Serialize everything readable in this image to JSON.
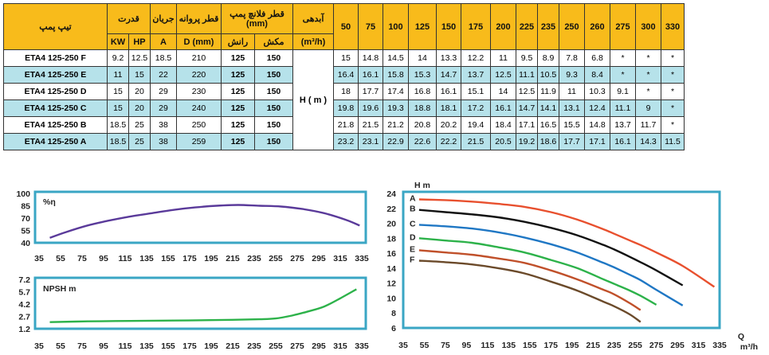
{
  "table": {
    "header": {
      "model": "تیپ پمپ",
      "power": "قدرت",
      "current": "جریان",
      "impeller": "قطر پروانه",
      "flange": "قطر فلانچ پمپ (mm)",
      "flow": "آبدهی",
      "kw": "KW",
      "hp": "HP",
      "a": "A",
      "dmm": "D (mm)",
      "discharge": "رانش",
      "suction": "مکش",
      "flow_unit": "(m³/h)",
      "h_label": "H ( m )"
    },
    "flows": [
      "50",
      "75",
      "100",
      "125",
      "150",
      "175",
      "200",
      "225",
      "235",
      "250",
      "260",
      "275",
      "300",
      "330"
    ],
    "rows": [
      {
        "model": "ETA4 125-250 F",
        "kw": "9.2",
        "hp": "12.5",
        "a": "18.5",
        "d": "210",
        "ran": "125",
        "mak": "150",
        "h": [
          "15",
          "14.8",
          "14.5",
          "14",
          "13.3",
          "12.2",
          "11",
          "9.5",
          "8.9",
          "7.8",
          "6.8",
          "*",
          "*",
          "*"
        ]
      },
      {
        "model": "ETA4 125-250 E",
        "kw": "11",
        "hp": "15",
        "a": "22",
        "d": "220",
        "ran": "125",
        "mak": "150",
        "h": [
          "16.4",
          "16.1",
          "15.8",
          "15.3",
          "14.7",
          "13.7",
          "12.5",
          "11.1",
          "10.5",
          "9.3",
          "8.4",
          "*",
          "*",
          "*"
        ]
      },
      {
        "model": "ETA4 125-250 D",
        "kw": "15",
        "hp": "20",
        "a": "29",
        "d": "230",
        "ran": "125",
        "mak": "150",
        "h": [
          "18",
          "17.7",
          "17.4",
          "16.8",
          "16.1",
          "15.1",
          "14",
          "12.5",
          "11.9",
          "11",
          "10.3",
          "9.1",
          "*",
          "*"
        ]
      },
      {
        "model": "ETA4 125-250 C",
        "kw": "15",
        "hp": "20",
        "a": "29",
        "d": "240",
        "ran": "125",
        "mak": "150",
        "h": [
          "19.8",
          "19.6",
          "19.3",
          "18.8",
          "18.1",
          "17.2",
          "16.1",
          "14.7",
          "14.1",
          "13.1",
          "12.4",
          "11.1",
          "9",
          "*"
        ]
      },
      {
        "model": "ETA4 125-250 B",
        "kw": "18.5",
        "hp": "25",
        "a": "38",
        "d": "250",
        "ran": "125",
        "mak": "150",
        "h": [
          "21.8",
          "21.5",
          "21.2",
          "20.8",
          "20.2",
          "19.4",
          "18.4",
          "17.1",
          "16.5",
          "15.5",
          "14.8",
          "13.7",
          "11.7",
          "*"
        ]
      },
      {
        "model": "ETA4 125-250 A",
        "kw": "18.5",
        "hp": "25",
        "a": "38",
        "d": "259",
        "ran": "125",
        "mak": "150",
        "h": [
          "23.2",
          "23.1",
          "22.9",
          "22.6",
          "22.2",
          "21.5",
          "20.5",
          "19.2",
          "18.6",
          "17.7",
          "17.1",
          "16.1",
          "14.3",
          "11.5"
        ]
      }
    ]
  },
  "chart_data": [
    {
      "type": "line",
      "ylabel": "%η",
      "x_ticks": [
        35,
        55,
        75,
        95,
        115,
        135,
        155,
        175,
        195,
        215,
        235,
        255,
        275,
        295,
        315,
        335
      ],
      "y_ticks": [
        40,
        55,
        70,
        85,
        100
      ],
      "xlim": [
        35,
        335
      ],
      "ylim": [
        40,
        100
      ],
      "grid": false,
      "colors": {
        "line": "#5a3a9a",
        "frame": "#3aa6c4"
      },
      "series": [
        {
          "x": [
            45,
            60,
            80,
            100,
            120,
            140,
            160,
            180,
            200,
            220,
            240,
            260,
            280,
            300,
            320,
            333
          ],
          "values": [
            46,
            53,
            61,
            67,
            72,
            76,
            80,
            83,
            85,
            86,
            85,
            84,
            81,
            76,
            68,
            61
          ]
        }
      ]
    },
    {
      "type": "line",
      "ylabel": "NPSH m",
      "x_ticks": [
        35,
        55,
        75,
        95,
        115,
        135,
        155,
        175,
        195,
        215,
        235,
        255,
        275,
        295,
        315,
        335
      ],
      "y_ticks": [
        "1.2",
        "2.7",
        "4.2",
        "5.7",
        "7.2"
      ],
      "xlim": [
        35,
        335
      ],
      "ylim": [
        1.2,
        7.2
      ],
      "grid": false,
      "colors": {
        "line": "#2db24a",
        "frame": "#3aa6c4"
      },
      "series": [
        {
          "x": [
            45,
            80,
            120,
            160,
            200,
            240,
            255,
            270,
            285,
            300,
            315,
            330
          ],
          "values": [
            2.0,
            2.1,
            2.15,
            2.2,
            2.25,
            2.35,
            2.45,
            2.8,
            3.3,
            3.9,
            4.9,
            6.0
          ]
        }
      ]
    },
    {
      "type": "line",
      "ylabel": "H m",
      "xlabel": "Q m³/h",
      "x_ticks": [
        35,
        55,
        75,
        95,
        115,
        135,
        155,
        175,
        195,
        215,
        235,
        255,
        275,
        295,
        315,
        335
      ],
      "y_ticks": [
        6,
        8,
        10,
        12,
        14,
        16,
        18,
        20,
        22,
        24
      ],
      "xlim": [
        35,
        335
      ],
      "ylim": [
        6,
        24
      ],
      "grid": false,
      "frame_color": "#3aa6c4",
      "series": [
        {
          "name": "A",
          "color": "#e8502e",
          "x": [
            50,
            75,
            100,
            125,
            150,
            175,
            200,
            225,
            235,
            250,
            260,
            275,
            300,
            330
          ],
          "values": [
            23.2,
            23.1,
            22.9,
            22.6,
            22.2,
            21.5,
            20.5,
            19.2,
            18.6,
            17.7,
            17.1,
            16.1,
            14.3,
            11.5
          ]
        },
        {
          "name": "B",
          "color": "#111111",
          "x": [
            50,
            75,
            100,
            125,
            150,
            175,
            200,
            225,
            235,
            250,
            260,
            275,
            300
          ],
          "values": [
            21.8,
            21.5,
            21.2,
            20.8,
            20.2,
            19.4,
            18.4,
            17.1,
            16.5,
            15.5,
            14.8,
            13.7,
            11.7
          ]
        },
        {
          "name": "C",
          "color": "#1f77c4",
          "x": [
            50,
            75,
            100,
            125,
            150,
            175,
            200,
            225,
            235,
            250,
            260,
            275,
            300
          ],
          "values": [
            19.8,
            19.6,
            19.3,
            18.8,
            18.1,
            17.2,
            16.1,
            14.7,
            14.1,
            13.1,
            12.4,
            11.1,
            9
          ]
        },
        {
          "name": "D",
          "color": "#2db24a",
          "x": [
            50,
            75,
            100,
            125,
            150,
            175,
            200,
            225,
            235,
            250,
            260,
            275
          ],
          "values": [
            18,
            17.7,
            17.4,
            16.8,
            16.1,
            15.1,
            14,
            12.5,
            11.9,
            11,
            10.3,
            9.1
          ]
        },
        {
          "name": "E",
          "color": "#c0502a",
          "x": [
            50,
            75,
            100,
            125,
            150,
            175,
            200,
            225,
            235,
            250,
            260
          ],
          "values": [
            16.4,
            16.1,
            15.8,
            15.3,
            14.7,
            13.7,
            12.5,
            11.1,
            10.5,
            9.3,
            8.4
          ]
        },
        {
          "name": "F",
          "color": "#6b4a2a",
          "x": [
            50,
            75,
            100,
            125,
            150,
            175,
            200,
            225,
            235,
            250,
            260
          ],
          "values": [
            15,
            14.8,
            14.5,
            14,
            13.3,
            12.2,
            11,
            9.5,
            8.9,
            7.8,
            6.8
          ]
        }
      ]
    }
  ]
}
